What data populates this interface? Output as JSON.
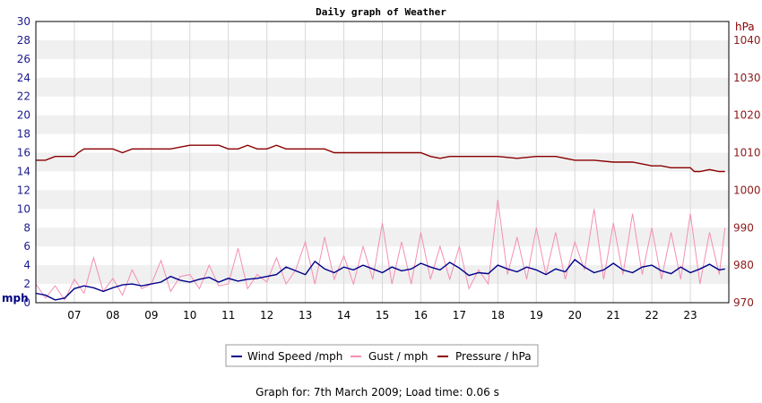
{
  "chart_data": {
    "type": "line",
    "title": "Daily graph of Weather",
    "left_axis": {
      "unit": "mph",
      "ylim": [
        0,
        30
      ],
      "ticks": [
        0,
        2,
        4,
        6,
        8,
        10,
        12,
        14,
        16,
        18,
        20,
        22,
        24,
        26,
        28,
        30
      ]
    },
    "right_axis": {
      "unit": "hPa",
      "ylim": [
        970,
        1045
      ],
      "ticks": [
        970,
        980,
        990,
        1000,
        1010,
        1020,
        1030,
        1040
      ]
    },
    "x_axis": {
      "xlim": [
        6.0,
        24.0
      ],
      "tick_labels": [
        "07",
        "08",
        "09",
        "10",
        "11",
        "12",
        "13",
        "14",
        "15",
        "16",
        "17",
        "18",
        "19",
        "20",
        "21",
        "22",
        "23"
      ]
    },
    "grid": true,
    "legend_position": "bottom",
    "series": [
      {
        "name": "Wind Speed /mph",
        "axis": "left",
        "color": "#00008b",
        "x": [
          6.0,
          6.25,
          6.5,
          6.75,
          7.0,
          7.25,
          7.5,
          7.75,
          8.0,
          8.25,
          8.5,
          8.75,
          9.0,
          9.25,
          9.5,
          9.75,
          10.0,
          10.25,
          10.5,
          10.75,
          11.0,
          11.25,
          11.5,
          11.75,
          12.0,
          12.25,
          12.5,
          12.75,
          13.0,
          13.25,
          13.5,
          13.75,
          14.0,
          14.25,
          14.5,
          14.75,
          15.0,
          15.25,
          15.5,
          15.75,
          16.0,
          16.25,
          16.5,
          16.75,
          17.0,
          17.25,
          17.5,
          17.75,
          18.0,
          18.25,
          18.5,
          18.75,
          19.0,
          19.25,
          19.5,
          19.75,
          20.0,
          20.25,
          20.5,
          20.75,
          21.0,
          21.25,
          21.5,
          21.75,
          22.0,
          22.25,
          22.5,
          22.75,
          23.0,
          23.25,
          23.5,
          23.75,
          23.9
        ],
        "values": [
          1.0,
          0.8,
          0.3,
          0.5,
          1.5,
          1.8,
          1.6,
          1.2,
          1.6,
          1.9,
          2.0,
          1.8,
          2.0,
          2.2,
          2.8,
          2.4,
          2.2,
          2.5,
          2.7,
          2.2,
          2.6,
          2.3,
          2.5,
          2.6,
          2.8,
          3.0,
          3.8,
          3.4,
          3.0,
          4.4,
          3.6,
          3.2,
          3.8,
          3.5,
          4.0,
          3.6,
          3.2,
          3.8,
          3.4,
          3.6,
          4.2,
          3.8,
          3.5,
          4.3,
          3.7,
          2.9,
          3.2,
          3.1,
          4.0,
          3.6,
          3.3,
          3.8,
          3.5,
          3.0,
          3.6,
          3.3,
          4.6,
          3.8,
          3.2,
          3.5,
          4.2,
          3.5,
          3.2,
          3.8,
          4.0,
          3.4,
          3.1,
          3.8,
          3.2,
          3.6,
          4.1,
          3.5,
          3.6
        ]
      },
      {
        "name": "Gust / mph",
        "axis": "left",
        "color": "#f48fb1",
        "x": [
          6.0,
          6.25,
          6.5,
          6.75,
          7.0,
          7.25,
          7.5,
          7.75,
          8.0,
          8.25,
          8.5,
          8.75,
          9.0,
          9.25,
          9.5,
          9.75,
          10.0,
          10.25,
          10.5,
          10.75,
          11.0,
          11.25,
          11.5,
          11.75,
          12.0,
          12.25,
          12.5,
          12.75,
          13.0,
          13.25,
          13.5,
          13.75,
          14.0,
          14.25,
          14.5,
          14.75,
          15.0,
          15.25,
          15.5,
          15.75,
          16.0,
          16.25,
          16.5,
          16.75,
          17.0,
          17.25,
          17.5,
          17.75,
          18.0,
          18.25,
          18.5,
          18.75,
          19.0,
          19.25,
          19.5,
          19.75,
          20.0,
          20.25,
          20.5,
          20.75,
          21.0,
          21.25,
          21.5,
          21.75,
          22.0,
          22.25,
          22.5,
          22.75,
          23.0,
          23.25,
          23.5,
          23.75,
          23.9
        ],
        "values": [
          2.0,
          0.5,
          1.8,
          0.3,
          2.5,
          1.0,
          4.8,
          1.2,
          2.6,
          0.8,
          3.5,
          1.5,
          2.0,
          4.5,
          1.2,
          2.8,
          3.0,
          1.5,
          4.0,
          1.8,
          2.0,
          5.8,
          1.5,
          3.0,
          2.2,
          4.8,
          2.0,
          3.5,
          6.5,
          2.0,
          7.0,
          2.5,
          5.0,
          2.0,
          6.0,
          2.5,
          8.5,
          2.0,
          6.5,
          2.0,
          7.5,
          2.5,
          6.0,
          2.5,
          6.0,
          1.5,
          3.5,
          2.0,
          11.0,
          3.0,
          7.0,
          2.5,
          8.0,
          3.0,
          7.5,
          2.5,
          6.5,
          3.5,
          10.0,
          2.5,
          8.5,
          3.0,
          9.5,
          3.0,
          8.0,
          2.5,
          7.5,
          2.5,
          9.5,
          2.0,
          7.5,
          3.0,
          8.0
        ]
      },
      {
        "name": "Pressure / hPa",
        "axis": "right",
        "color": "#8b0000",
        "x": [
          6.0,
          6.25,
          6.5,
          7.0,
          7.1,
          7.25,
          8.0,
          8.25,
          8.5,
          8.75,
          9.0,
          9.5,
          10.0,
          10.75,
          11.0,
          11.25,
          11.5,
          11.75,
          12.0,
          12.25,
          12.5,
          12.75,
          13.0,
          13.5,
          13.75,
          14.0,
          14.5,
          15.0,
          16.0,
          16.25,
          16.5,
          16.75,
          17.0,
          17.5,
          18.0,
          18.5,
          19.0,
          19.5,
          20.0,
          20.5,
          21.0,
          21.5,
          22.0,
          22.25,
          22.5,
          23.0,
          23.1,
          23.25,
          23.5,
          23.75,
          23.9
        ],
        "values": [
          1008,
          1008,
          1009,
          1009,
          1010,
          1011,
          1011,
          1010,
          1011,
          1011,
          1011,
          1011,
          1012,
          1012,
          1011,
          1011,
          1012,
          1011,
          1011,
          1012,
          1011,
          1011,
          1011,
          1011,
          1010,
          1010,
          1010,
          1010,
          1010,
          1009,
          1008.5,
          1009,
          1009,
          1009,
          1009,
          1008.5,
          1009,
          1009,
          1008,
          1008,
          1007.5,
          1007.5,
          1006.5,
          1006.5,
          1006,
          1006,
          1005,
          1005,
          1005.5,
          1005,
          1005
        ]
      }
    ]
  },
  "footer_text": "Graph for: 7th March 2009; Load time: 0.06 s"
}
